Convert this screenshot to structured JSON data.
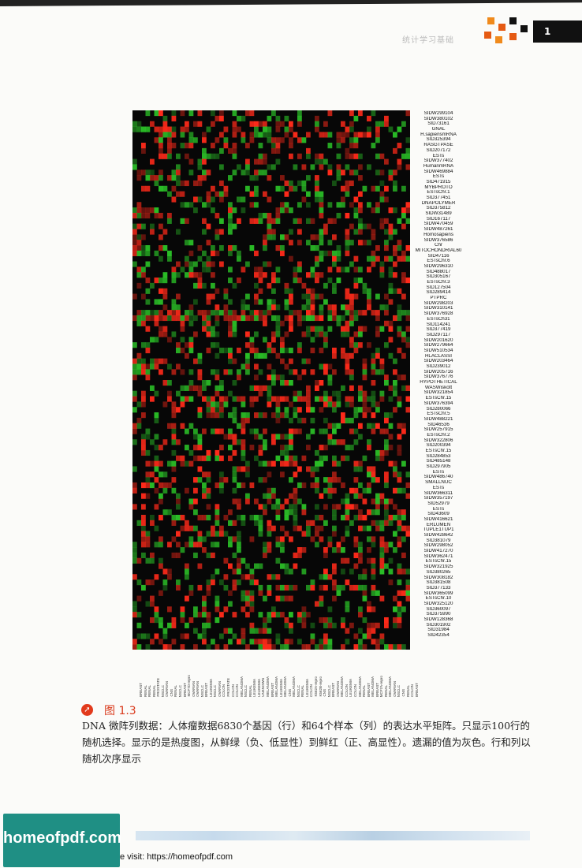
{
  "header": {
    "running_title": "统计学习基础",
    "page_number": "1"
  },
  "figure": {
    "rows": 100,
    "cols": 64,
    "colors": {
      "positive": "#ff2a1a",
      "negative": "#2ed12a",
      "zero": "#070707"
    },
    "gene_labels": [
      "SIDW299104",
      "SIDW380102",
      "SID73161",
      "GNAL",
      "H.sapiensmRNA",
      "SID325394",
      "RASGTPASE",
      "SID207172",
      "ESTs",
      "SIDW377402",
      "HumanmRNA",
      "SIDW469884",
      "ESTs",
      "SID471915",
      "MYBPROTO",
      "ESTsChr.1",
      "SID377451",
      "DNAPOLYMER",
      "SID375812",
      "SIDW31489",
      "SID167117",
      "SIDW470459",
      "SIDW487261",
      "Homosapiens",
      "SIDW376586",
      "Chr",
      "MITOCHONDRIAL60",
      "SID47116",
      "ESTsChr.6",
      "SIDW296310",
      "SID488017",
      "SID305167",
      "ESTsChr.3",
      "SID127504",
      "SID289414",
      "PTPRC",
      "SIDW298203",
      "SIDW310141",
      "SIDW376928",
      "ESTsCh31",
      "SID114241",
      "SID377419",
      "SID297117",
      "SIDW201620",
      "SIDW279664",
      "SIDW510534",
      "HLACLASSI",
      "SIDW203464",
      "SID239012",
      "SIDW205716",
      "SIDW376776",
      "HYPOTHETICAL",
      "WASWiskott",
      "SIDW321854",
      "ESTsChr.15",
      "SIDW376394",
      "SID280066",
      "ESTsChr.5",
      "SIDW488221",
      "SID46536",
      "SIDW257915",
      "ESTsChr.2",
      "SIDW322806",
      "SID200394",
      "ESTsChr.15",
      "SID284853",
      "SID485148",
      "SID297905",
      "ESTs",
      "SIDW486740",
      "SMALLNUC",
      "ESTs",
      "SIDW366311",
      "SIDW357197",
      "SID52979",
      "ESTs",
      "SID43609",
      "SIDW416621",
      "ERLUMEN",
      "TUPLE1TUP1",
      "SIDW428642",
      "SID381079",
      "SIDW298052",
      "SIDW417270",
      "SIDW362471",
      "ESTsChr.15",
      "SIDW321925",
      "SID380265",
      "SIDW308182",
      "SID381508",
      "SID377133",
      "SIDW365099",
      "ESTsChr.10",
      "SIDW325120",
      "SID360097",
      "SID375990",
      "SIDW128368",
      "SID301902",
      "SID31984",
      "SID42354"
    ],
    "sample_labels": [
      "BREAST",
      "RENAL",
      "RENAL",
      "RENAL",
      "PROSTATE",
      "NSCLC",
      "OVARIAN",
      "CNS",
      "RENAL",
      "NSCLC",
      "BREAST",
      "MCF7D-repro",
      "OVARIAN",
      "OVARIAN",
      "NSCLC",
      "BREAST",
      "LEUKEMIA",
      "NSCLC",
      "OVARIAN",
      "COLON",
      "PROSTATE",
      "COLON",
      "COLON",
      "MELANOMA",
      "NSCLC",
      "RENAL",
      "LEUKEMIA",
      "LEUKEMIA",
      "UNKNOWN",
      "MELANOMA",
      "BREAST",
      "MELANOMA",
      "LEUKEMIA",
      "MELANOMA",
      "CNS",
      "MELANOMA",
      "NSCLC",
      "RENAL",
      "LEUKEMIA",
      "COLON",
      "K562A-repro",
      "K562B-repro",
      "CNS",
      "NSCLC",
      "BREAST",
      "OVARIAN",
      "MELANOMA",
      "COLON",
      "LEUKEMIA",
      "COLON",
      "MELANOMA",
      "RENAL",
      "BREAST",
      "MELANOMA",
      "BREAST",
      "MCF7A-repro",
      "RENAL",
      "MELANOMA",
      "OVARIAN",
      "NSCLC",
      "CNS",
      "RENAL",
      "COLON",
      "BREAST"
    ]
  },
  "caption": {
    "icon": "arrow-icon",
    "title": "图 1.3",
    "body": "DNA 微阵列数据：人体瘤数据6830个基因（行）和64个样本（列）的表达水平矩阵。只显示100行的随机选择。显示的是热度图，从鲜绿（负、低显性）到鲜红（正、高显性）。遗漏的值为灰色。行和列以随机次序显示"
  },
  "footer": {
    "logo_text": "homeofpdf.com",
    "visit_text": "e visit: https://homeofpdf.com"
  }
}
